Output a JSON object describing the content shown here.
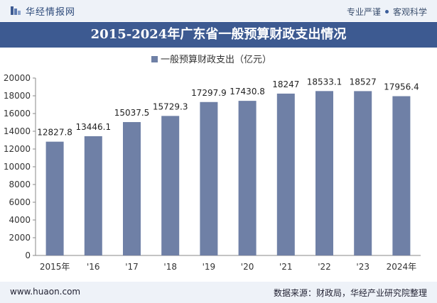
{
  "header": {
    "brand_name": "华经情报网",
    "slogan_left": "专业严谨",
    "slogan_right": "客观科学"
  },
  "chart_data": {
    "type": "bar",
    "title": "2015-2024年广东省一般预算财政支出情况",
    "categories": [
      "2015年",
      "'16",
      "'17",
      "'18",
      "'19",
      "'20",
      "'21",
      "'22",
      "'23",
      "2024年"
    ],
    "series": [
      {
        "name": "一般预算财政支出（亿元）",
        "values": [
          12827.8,
          13446.1,
          15037.5,
          15729.3,
          17297.9,
          17430.8,
          18247,
          18533.1,
          18527,
          17956.4
        ],
        "value_labels": [
          "12827.8",
          "13446.1",
          "15037.5",
          "15729.3",
          "17297.9",
          "17430.8",
          "18247",
          "18533.1",
          "18527",
          "17956.4"
        ]
      }
    ],
    "ylim": [
      0,
      20000
    ],
    "yticks": [
      0,
      2000,
      4000,
      6000,
      8000,
      10000,
      12000,
      14000,
      16000,
      18000,
      20000
    ],
    "grid": false,
    "legend": "top-center",
    "bar_color": "#6f80a6"
  },
  "footer": {
    "website": "www.huaon.com",
    "source": "数据来源：财政局，华经产业研究院整理"
  }
}
